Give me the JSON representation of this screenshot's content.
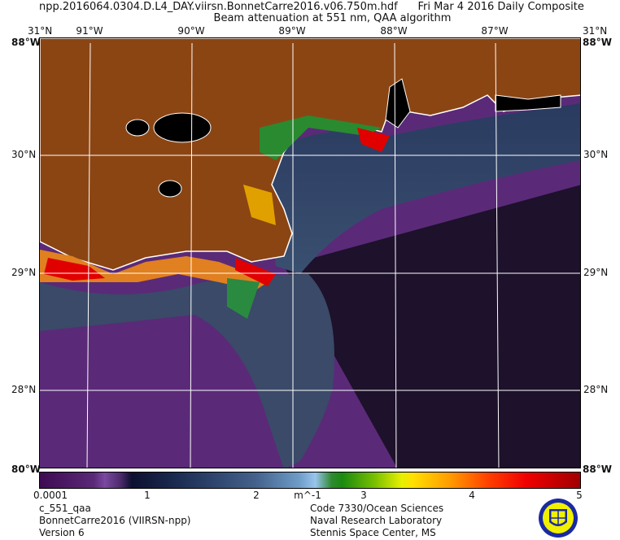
{
  "header": {
    "filename": "npp.2016064.0304.D.L4_DAY.viirsn.BonnetCarre2016.v06.750m.hdf",
    "date": "Fri Mar  4 2016 Daily Composite",
    "subtitle": "Beam attenuation at 551 nm, QAA algorithm"
  },
  "map": {
    "lon_labels": [
      "91°W",
      "90°W",
      "89°W",
      "88°W",
      "87°W"
    ],
    "lat_labels": [
      "30°N",
      "29°N",
      "28°N"
    ],
    "corner_labels": {
      "top_left_lat": "31°N",
      "top_left_lon": "88°W",
      "top_right_lat": "31°N",
      "top_right_lon": "88°W",
      "bottom_left": "80°W",
      "bottom_right": "88°W"
    },
    "colors": {
      "land": "#8b4513",
      "no_data": "#000000",
      "coastline": "#ffffff",
      "grid": "#ffffff"
    }
  },
  "colorbar": {
    "ticks": [
      "0.0001",
      "1",
      "2",
      "3",
      "4",
      "5"
    ],
    "units": "m^-1"
  },
  "footer": {
    "left": [
      "c_551_qaa",
      "BonnetCarre2016 (VIIRSN-npp)",
      "Version 6"
    ],
    "right": [
      "Code 7330/Ocean Sciences",
      "Naval Research Laboratory",
      "Stennis Space Center, MS"
    ]
  },
  "logo": {
    "name": "naval-research-laboratory-seal"
  }
}
